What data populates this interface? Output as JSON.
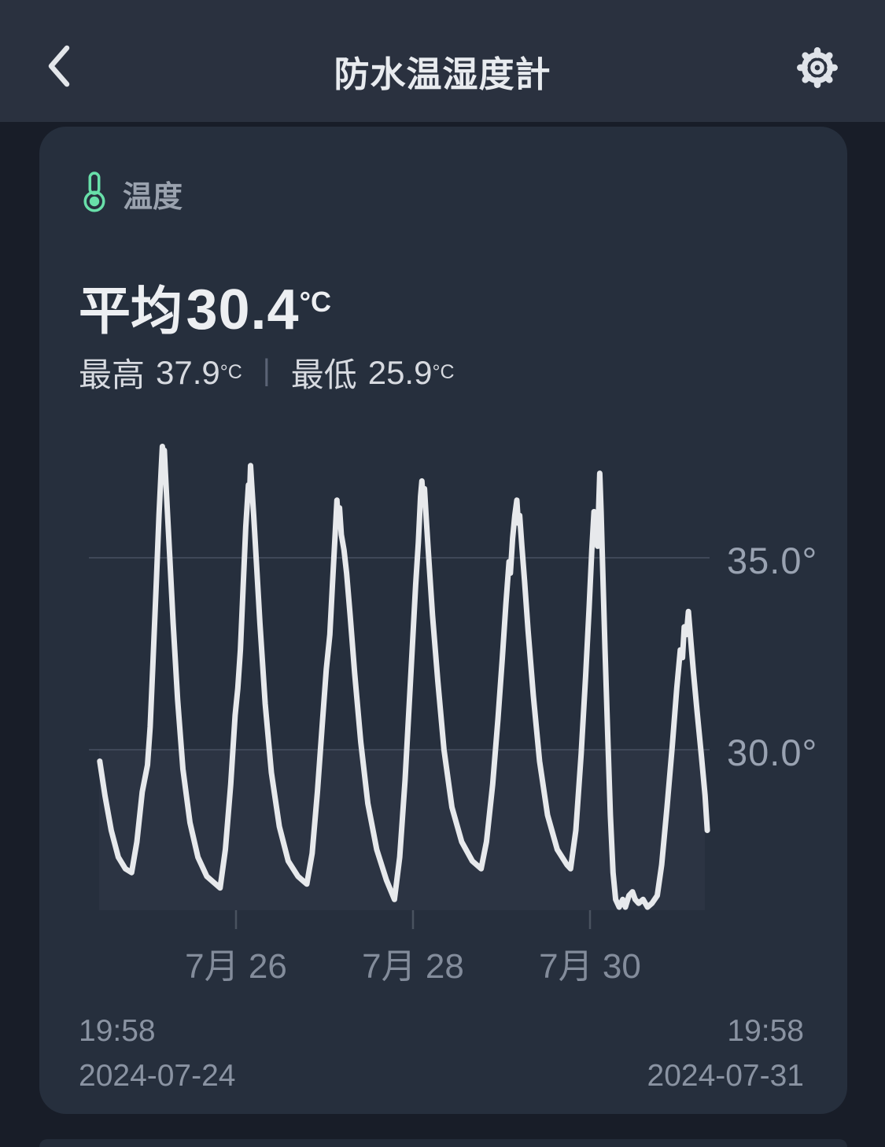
{
  "header": {
    "title": "防水温湿度計",
    "back_icon": "chevron-left",
    "settings_icon": "gear"
  },
  "card": {
    "sensor": {
      "icon": "thermometer",
      "label": "温度"
    },
    "average": {
      "label": "平均",
      "value": "30.4",
      "unit": "°C"
    },
    "max": {
      "label": "最高",
      "value": "37.9",
      "unit": "°C"
    },
    "min": {
      "label": "最低",
      "value": "25.9",
      "unit": "°C"
    },
    "separator": "|",
    "range_start": {
      "time": "19:58",
      "date": "2024-07-24"
    },
    "range_end": {
      "time": "19:58",
      "date": "2024-07-31"
    }
  },
  "colors": {
    "accent_green": "#68dfa9",
    "line": "#e7e9ec",
    "card_bg": "#262f3d",
    "header_bg": "#2a313f",
    "page_bg": "#181d28",
    "plot_panel": "#2c3443",
    "gridline": "#3f4858"
  },
  "chart_data": {
    "type": "line",
    "title": "温度 (Temperature)",
    "unit": "°C",
    "stats": {
      "avg": 30.4,
      "max": 37.9,
      "min": 25.9
    },
    "x_axis": {
      "start": "2024-07-24 19:58",
      "end": "2024-07-31 19:58",
      "t_unit": "days since 2024-07-24 00:00",
      "ticks": [
        {
          "label": "7月 26",
          "t": 2.5
        },
        {
          "label": "7月 28",
          "t": 4.5
        },
        {
          "label": "7月 30",
          "t": 6.5
        }
      ]
    },
    "y_axis": {
      "ticks": [
        {
          "label": "35.0°",
          "value": 35.0
        },
        {
          "label": "30.0°",
          "value": 30.0
        }
      ],
      "range": [
        25.8,
        38.6
      ],
      "grid": true
    },
    "legend": false,
    "points": [
      [
        0.96,
        29.7
      ],
      [
        1.02,
        28.8
      ],
      [
        1.09,
        27.9
      ],
      [
        1.17,
        27.2
      ],
      [
        1.25,
        26.9
      ],
      [
        1.32,
        26.8
      ],
      [
        1.38,
        27.6
      ],
      [
        1.44,
        28.9
      ],
      [
        1.5,
        29.6
      ],
      [
        1.53,
        30.6
      ],
      [
        1.56,
        32.2
      ],
      [
        1.6,
        34.4
      ],
      [
        1.63,
        36.1
      ],
      [
        1.655,
        37.3
      ],
      [
        1.668,
        37.9
      ],
      [
        1.678,
        37.4
      ],
      [
        1.69,
        37.8
      ],
      [
        1.703,
        37.2
      ],
      [
        1.72,
        36.4
      ],
      [
        1.75,
        35.1
      ],
      [
        1.79,
        33.3
      ],
      [
        1.84,
        31.3
      ],
      [
        1.9,
        29.5
      ],
      [
        1.98,
        28.1
      ],
      [
        2.07,
        27.2
      ],
      [
        2.17,
        26.7
      ],
      [
        2.27,
        26.5
      ],
      [
        2.32,
        26.4
      ],
      [
        2.38,
        27.4
      ],
      [
        2.44,
        29.1
      ],
      [
        2.49,
        30.9
      ],
      [
        2.52,
        31.6
      ],
      [
        2.55,
        32.6
      ],
      [
        2.58,
        34.2
      ],
      [
        2.61,
        35.8
      ],
      [
        2.64,
        36.9
      ],
      [
        2.653,
        36.6
      ],
      [
        2.664,
        37.4
      ],
      [
        2.678,
        36.9
      ],
      [
        2.7,
        36.1
      ],
      [
        2.73,
        34.9
      ],
      [
        2.77,
        33.3
      ],
      [
        2.83,
        31.2
      ],
      [
        2.9,
        29.4
      ],
      [
        2.99,
        28.0
      ],
      [
        3.09,
        27.1
      ],
      [
        3.2,
        26.7
      ],
      [
        3.3,
        26.5
      ],
      [
        3.36,
        27.3
      ],
      [
        3.42,
        28.9
      ],
      [
        3.47,
        30.5
      ],
      [
        3.52,
        32.1
      ],
      [
        3.56,
        33.0
      ],
      [
        3.59,
        34.3
      ],
      [
        3.62,
        35.6
      ],
      [
        3.64,
        36.5
      ],
      [
        3.655,
        36.0
      ],
      [
        3.67,
        36.3
      ],
      [
        3.69,
        35.6
      ],
      [
        3.72,
        35.2
      ],
      [
        3.75,
        34.6
      ],
      [
        3.79,
        33.5
      ],
      [
        3.84,
        32.0
      ],
      [
        3.91,
        30.2
      ],
      [
        3.99,
        28.6
      ],
      [
        4.09,
        27.4
      ],
      [
        4.2,
        26.6
      ],
      [
        4.29,
        26.1
      ],
      [
        4.35,
        27.2
      ],
      [
        4.41,
        29.2
      ],
      [
        4.46,
        31.3
      ],
      [
        4.5,
        33.0
      ],
      [
        4.53,
        34.3
      ],
      [
        4.56,
        35.4
      ],
      [
        4.585,
        36.6
      ],
      [
        4.6,
        37.0
      ],
      [
        4.615,
        36.5
      ],
      [
        4.63,
        36.8
      ],
      [
        4.65,
        36.0
      ],
      [
        4.68,
        34.9
      ],
      [
        4.72,
        33.5
      ],
      [
        4.78,
        31.8
      ],
      [
        4.85,
        30.0
      ],
      [
        4.94,
        28.5
      ],
      [
        5.05,
        27.6
      ],
      [
        5.17,
        27.1
      ],
      [
        5.27,
        26.9
      ],
      [
        5.33,
        27.6
      ],
      [
        5.4,
        29.1
      ],
      [
        5.46,
        30.8
      ],
      [
        5.51,
        32.4
      ],
      [
        5.55,
        33.8
      ],
      [
        5.585,
        34.9
      ],
      [
        5.6,
        34.6
      ],
      [
        5.625,
        35.5
      ],
      [
        5.65,
        36.1
      ],
      [
        5.673,
        36.5
      ],
      [
        5.69,
        35.9
      ],
      [
        5.705,
        36.1
      ],
      [
        5.73,
        35.3
      ],
      [
        5.76,
        34.4
      ],
      [
        5.8,
        33.1
      ],
      [
        5.86,
        31.4
      ],
      [
        5.93,
        29.7
      ],
      [
        6.02,
        28.3
      ],
      [
        6.13,
        27.4
      ],
      [
        6.24,
        27.0
      ],
      [
        6.28,
        26.9
      ],
      [
        6.34,
        27.9
      ],
      [
        6.4,
        29.9
      ],
      [
        6.45,
        31.9
      ],
      [
        6.49,
        33.7
      ],
      [
        6.52,
        35.2
      ],
      [
        6.545,
        36.2
      ],
      [
        6.558,
        35.4
      ],
      [
        6.572,
        35.9
      ],
      [
        6.585,
        35.3
      ],
      [
        6.6,
        36.5
      ],
      [
        6.61,
        37.2
      ],
      [
        6.625,
        36.2
      ],
      [
        6.645,
        34.6
      ],
      [
        6.67,
        32.6
      ],
      [
        6.7,
        30.4
      ],
      [
        6.73,
        28.3
      ],
      [
        6.76,
        26.8
      ],
      [
        6.79,
        26.1
      ],
      [
        6.83,
        25.9
      ],
      [
        6.87,
        26.1
      ],
      [
        6.9,
        25.9
      ],
      [
        6.94,
        26.2
      ],
      [
        6.98,
        26.3
      ],
      [
        7.01,
        26.1
      ],
      [
        7.05,
        26.0
      ],
      [
        7.1,
        26.1
      ],
      [
        7.15,
        25.9
      ],
      [
        7.2,
        26.0
      ],
      [
        7.26,
        26.2
      ],
      [
        7.31,
        27.0
      ],
      [
        7.37,
        28.5
      ],
      [
        7.43,
        30.1
      ],
      [
        7.48,
        31.6
      ],
      [
        7.52,
        32.6
      ],
      [
        7.545,
        32.4
      ],
      [
        7.565,
        33.2
      ],
      [
        7.59,
        33.0
      ],
      [
        7.612,
        33.6
      ],
      [
        7.64,
        32.8
      ],
      [
        7.67,
        32.0
      ],
      [
        7.71,
        31.0
      ],
      [
        7.76,
        29.8
      ],
      [
        7.8,
        28.8
      ],
      [
        7.825,
        27.9
      ]
    ]
  }
}
